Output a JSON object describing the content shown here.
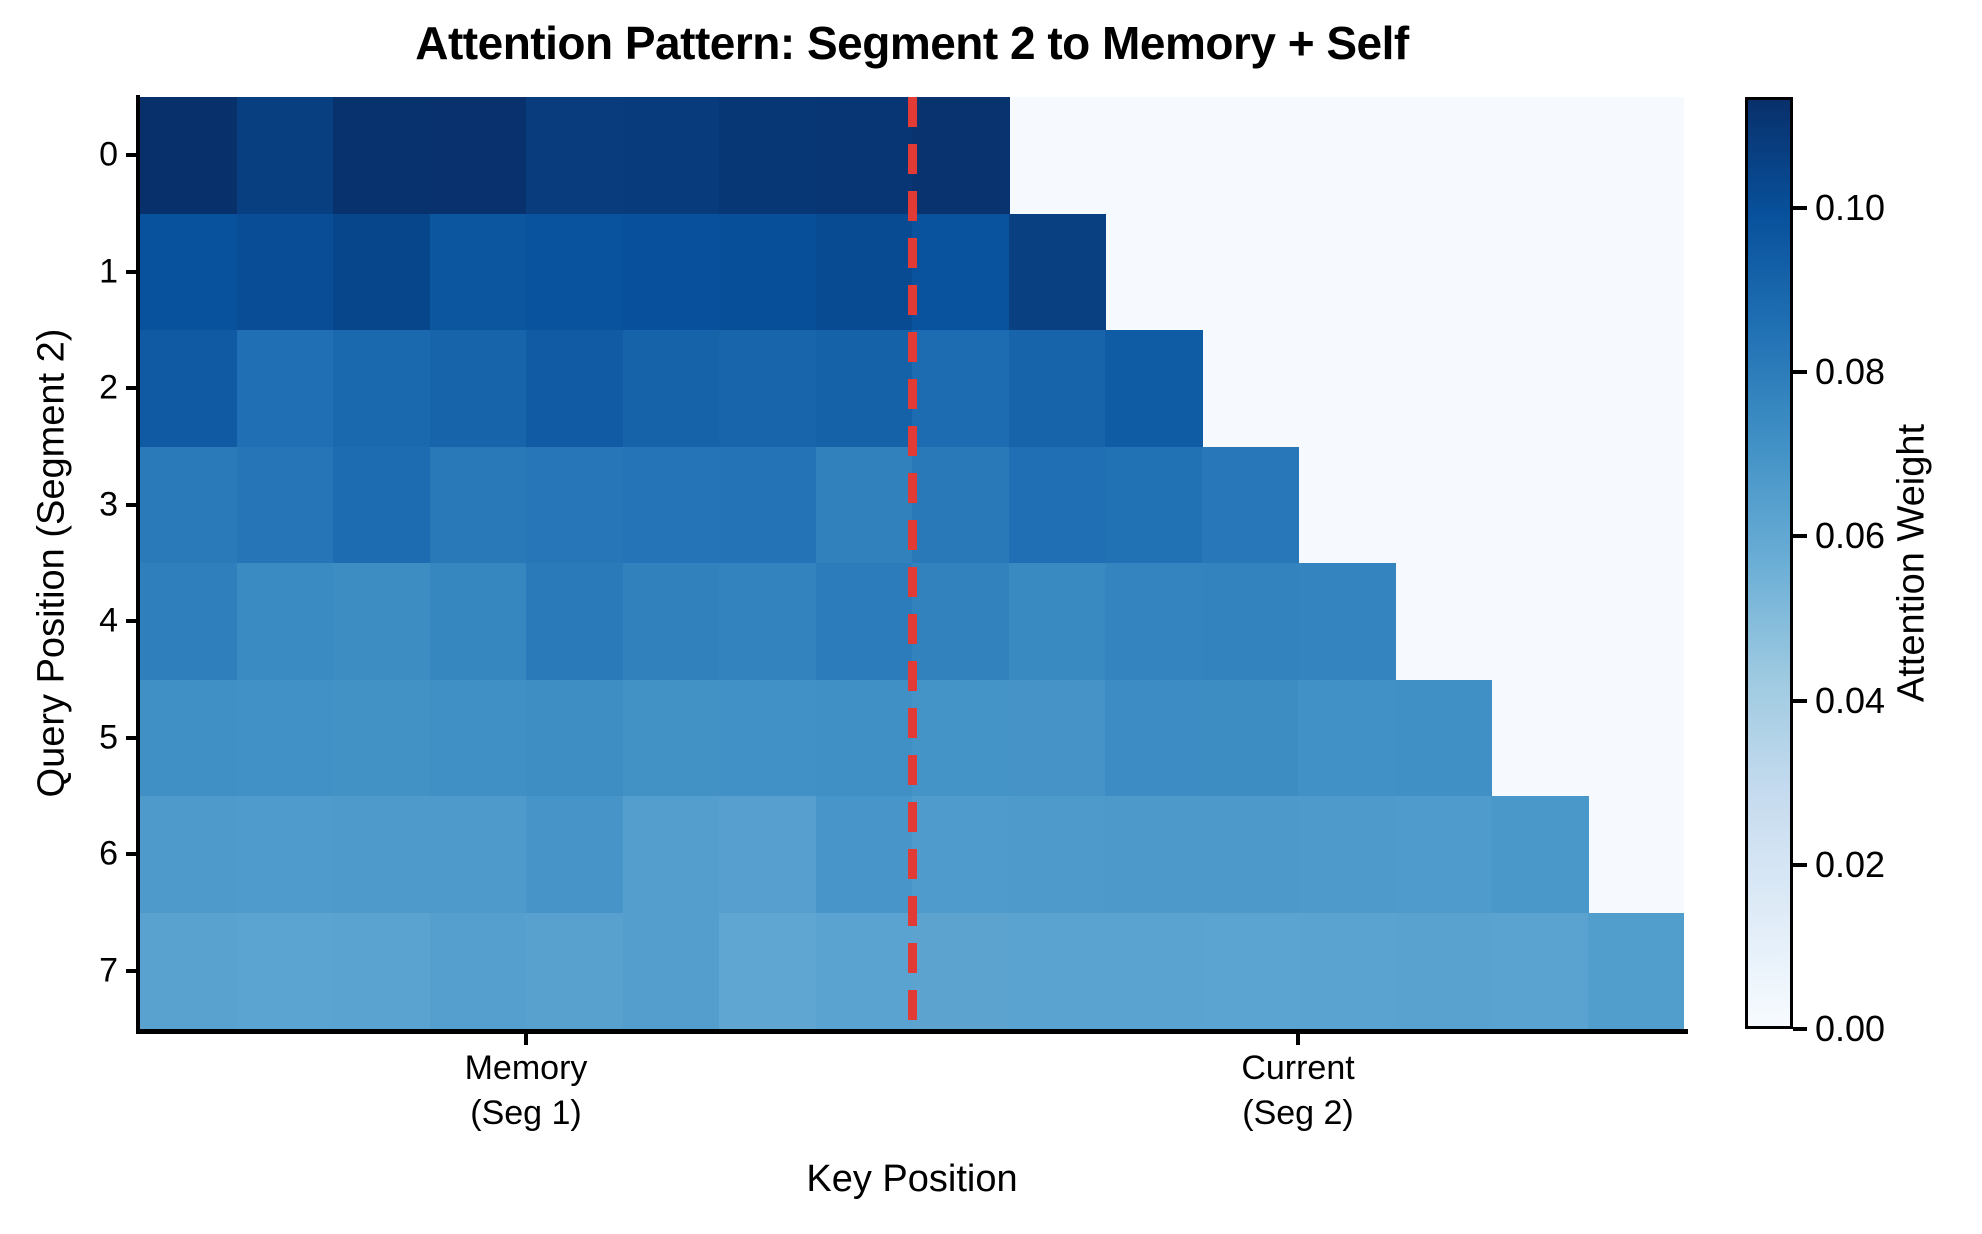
{
  "chart_data": {
    "type": "heatmap",
    "title": "Attention Pattern: Segment 2 to Memory + Self",
    "xlabel": "Key Position",
    "ylabel": "Query Position (Segment 2)",
    "rows": 8,
    "cols": 16,
    "memory_cols": 8,
    "current_cols": 8,
    "segment_boundary_after_col": 8,
    "causal_mask": "row i attends to 8 memory cols + current cols 0..i; later cols masked",
    "y_tick_labels": [
      "0",
      "1",
      "2",
      "3",
      "4",
      "5",
      "6",
      "7"
    ],
    "x_ticks": [
      {
        "position": 4,
        "line1": "Memory",
        "line2": "(Seg 1)"
      },
      {
        "position": 12,
        "line1": "Current",
        "line2": "(Seg 2)"
      }
    ],
    "colorbar": {
      "label": "Attention Weight",
      "colormap": "Blues",
      "vmin": 0.0,
      "vmax": 0.1135,
      "tick_values": [
        0.0,
        0.02,
        0.04,
        0.06,
        0.08,
        0.1
      ],
      "tick_labels": [
        "0.00",
        "0.02",
        "0.04",
        "0.06",
        "0.08",
        "0.10"
      ]
    },
    "colors": {
      "masked_cell": "#f6faff",
      "boundary_line": "#e23b35",
      "axis": "#000000",
      "title_text": "#000000"
    },
    "values": [
      [
        0.1135,
        0.107,
        0.1125,
        0.113,
        0.1085,
        0.1088,
        0.1105,
        0.1108,
        0.1122,
        null,
        null,
        null,
        null,
        null,
        null,
        null
      ],
      [
        0.0993,
        0.1012,
        0.1042,
        0.0972,
        0.0988,
        0.0996,
        0.1002,
        0.1018,
        0.099,
        0.1068,
        null,
        null,
        null,
        null,
        null,
        null
      ],
      [
        0.0952,
        0.0858,
        0.0893,
        0.0908,
        0.0948,
        0.0912,
        0.0903,
        0.0918,
        0.0872,
        0.0908,
        0.0946,
        null,
        null,
        null,
        null,
        null
      ],
      [
        0.0812,
        0.0832,
        0.0872,
        0.0818,
        0.0825,
        0.0838,
        0.0842,
        0.0782,
        0.0815,
        0.0858,
        0.0852,
        0.0822,
        null,
        null,
        null,
        null
      ],
      [
        0.0792,
        0.0738,
        0.0732,
        0.0762,
        0.0812,
        0.0782,
        0.0772,
        0.0802,
        0.0778,
        0.0742,
        0.0768,
        0.0772,
        0.077,
        null,
        null,
        null
      ],
      [
        0.0718,
        0.0713,
        0.0709,
        0.0716,
        0.0728,
        0.0711,
        0.0713,
        0.0717,
        0.0699,
        0.0697,
        0.0729,
        0.0731,
        0.0713,
        0.0717,
        null,
        null
      ],
      [
        0.0669,
        0.0666,
        0.0667,
        0.0668,
        0.0692,
        0.0651,
        0.0641,
        0.0687,
        0.0666,
        0.0669,
        0.0671,
        0.0673,
        0.0667,
        0.0666,
        0.0681,
        null
      ],
      [
        0.0629,
        0.0622,
        0.0625,
        0.0646,
        0.0633,
        0.0649,
        0.0606,
        0.0626,
        0.0621,
        0.0627,
        0.0625,
        0.0623,
        0.0626,
        0.0629,
        0.0625,
        0.0656
      ]
    ]
  }
}
